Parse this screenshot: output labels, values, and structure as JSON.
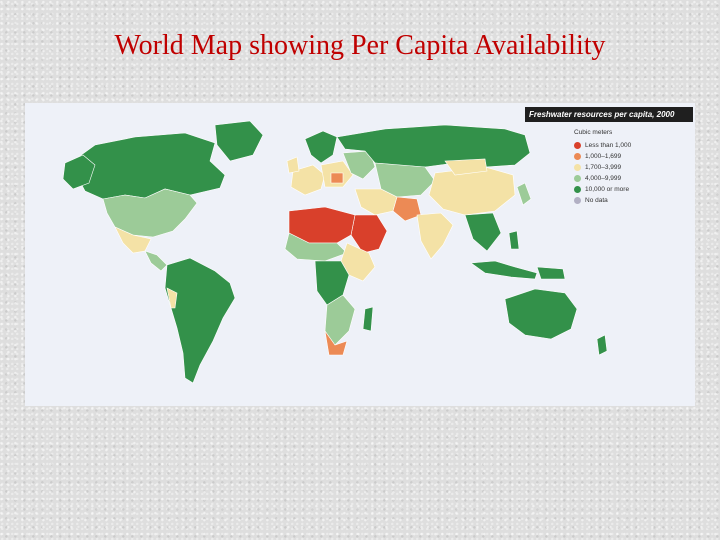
{
  "slide": {
    "title": "World Map showing Per Capita Availability"
  },
  "map": {
    "header": "Freshwater resources per capita, 2000",
    "legend_title": "Cubic meters",
    "legend": [
      {
        "label": "Less than 1,000",
        "color": "#d9402b"
      },
      {
        "label": "1,000–1,699",
        "color": "#ec8a55"
      },
      {
        "label": "1,700–3,999",
        "color": "#f4e2a6"
      },
      {
        "label": "4,000–9,999",
        "color": "#9ccb98"
      },
      {
        "label": "10,000 or more",
        "color": "#33914a"
      },
      {
        "label": "No data",
        "color": "#b2b0c4"
      }
    ],
    "ocean_color": "#eef1f8"
  }
}
